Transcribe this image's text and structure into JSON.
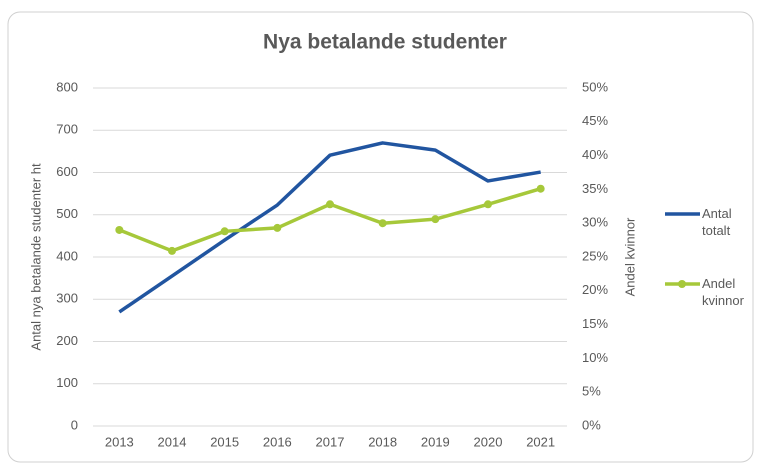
{
  "chart_data": {
    "type": "line",
    "title": "Nya betalande studenter",
    "categories": [
      "2013",
      "2014",
      "2015",
      "2016",
      "2017",
      "2018",
      "2019",
      "2020",
      "2021"
    ],
    "ylabel": "Antal nya betalande studenter ht",
    "y2label": "Andel kvinnor",
    "ylim": [
      0,
      800
    ],
    "yticks": [
      0,
      100,
      200,
      300,
      400,
      500,
      600,
      700,
      800
    ],
    "y2lim": [
      0,
      50
    ],
    "y2ticks": [
      {
        "value": 0,
        "label": "0%"
      },
      {
        "value": 5,
        "label": "5%"
      },
      {
        "value": 10,
        "label": "10%"
      },
      {
        "value": 15,
        "label": "15%"
      },
      {
        "value": 20,
        "label": "20%"
      },
      {
        "value": 25,
        "label": "25%"
      },
      {
        "value": 30,
        "label": "30%"
      },
      {
        "value": 35,
        "label": "35%"
      },
      {
        "value": 40,
        "label": "40%"
      },
      {
        "value": 45,
        "label": "45%"
      },
      {
        "value": 50,
        "label": "50%"
      }
    ],
    "grid": true,
    "legend": "right",
    "series": [
      {
        "name": "Antal totalt",
        "color": "#2155a0",
        "values": [
          270,
          355,
          440,
          523,
          641,
          670,
          653,
          580,
          601
        ]
      },
      {
        "name": "Andel kvinnor",
        "color": "#a6c83a",
        "axis": "y2",
        "markers": true,
        "values": [
          29.0,
          25.9,
          28.8,
          29.3,
          32.8,
          30.0,
          30.6,
          32.8,
          35.1
        ]
      }
    ]
  }
}
